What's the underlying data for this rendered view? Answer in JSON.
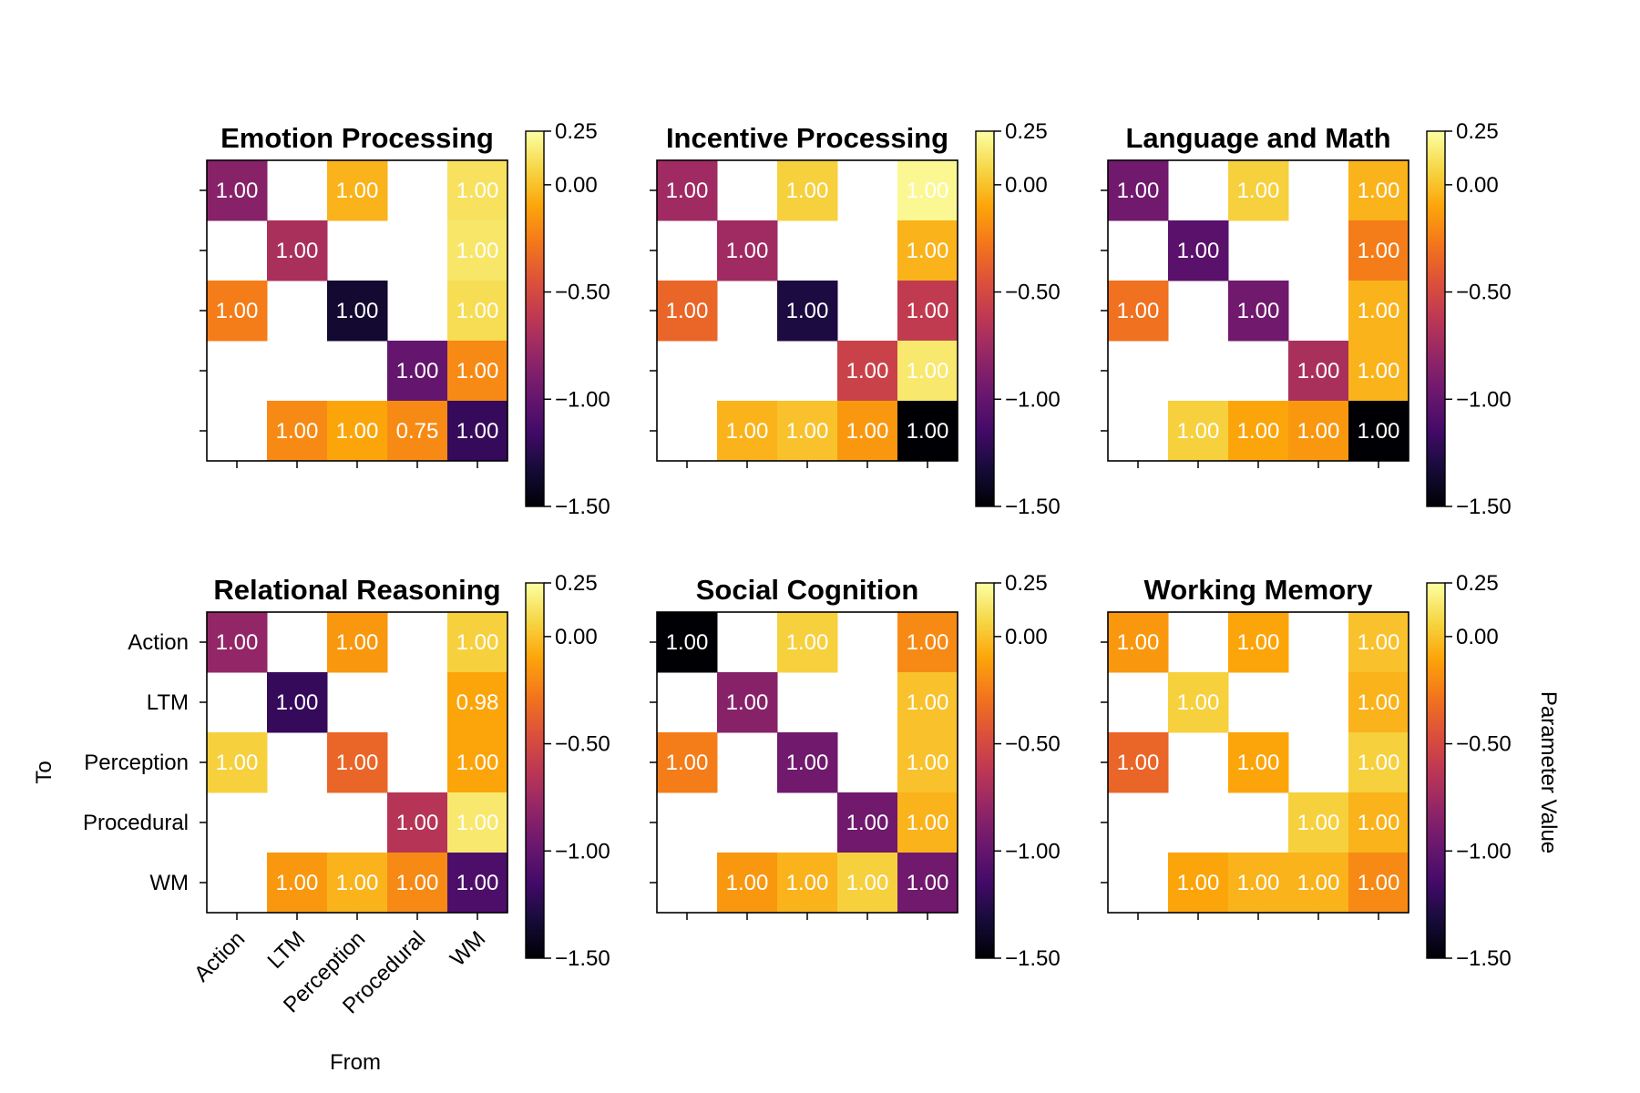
{
  "chart_data": {
    "type": "heatmap",
    "categories": [
      "Action",
      "LTM",
      "Perception",
      "Procedural",
      "WM"
    ],
    "xlabel": "From",
    "ylabel": "To",
    "colorbar_label": "Parameter Value",
    "colormap": "inferno",
    "color_range": [
      -1.5,
      0.25
    ],
    "colorbar_ticks": [
      0.25,
      0.0,
      -0.5,
      -1.0,
      -1.5
    ],
    "colorbar_tick_labels": [
      "0.25",
      "0.00",
      "−0.50",
      "−1.00",
      "−1.50"
    ],
    "panels": [
      {
        "title": "Emotion Processing",
        "values": [
          [
            -0.85,
            null,
            -0.05,
            null,
            0.12
          ],
          [
            null,
            -0.7,
            null,
            null,
            0.14
          ],
          [
            -0.25,
            null,
            -1.35,
            null,
            0.1
          ],
          [
            null,
            null,
            null,
            -1.0,
            -0.2
          ],
          [
            null,
            -0.2,
            -0.1,
            -0.2,
            -1.2
          ]
        ],
        "labels": [
          [
            "1.00",
            null,
            "1.00",
            null,
            "1.00"
          ],
          [
            null,
            "1.00",
            null,
            null,
            "1.00"
          ],
          [
            "1.00",
            null,
            "1.00",
            null,
            "1.00"
          ],
          [
            null,
            null,
            null,
            "1.00",
            "1.00"
          ],
          [
            null,
            "1.00",
            "1.00",
            "0.75",
            "1.00"
          ]
        ]
      },
      {
        "title": "Incentive Processing",
        "values": [
          [
            -0.75,
            null,
            0.05,
            null,
            0.22
          ],
          [
            null,
            -0.75,
            null,
            null,
            -0.05
          ],
          [
            -0.35,
            null,
            -1.3,
            null,
            -0.6
          ],
          [
            null,
            null,
            null,
            -0.55,
            0.15
          ],
          [
            null,
            -0.05,
            0.0,
            -0.15,
            -1.5
          ]
        ],
        "labels": [
          [
            "1.00",
            null,
            "1.00",
            null,
            "1.00"
          ],
          [
            null,
            "1.00",
            null,
            null,
            "1.00"
          ],
          [
            "1.00",
            null,
            "1.00",
            null,
            "1.00"
          ],
          [
            null,
            null,
            null,
            "1.00",
            "1.00"
          ],
          [
            null,
            "1.00",
            "1.00",
            "1.00",
            "1.00"
          ]
        ]
      },
      {
        "title": "Language and Math",
        "values": [
          [
            -0.95,
            null,
            0.05,
            null,
            -0.05
          ],
          [
            null,
            -1.05,
            null,
            null,
            -0.25
          ],
          [
            -0.3,
            null,
            -0.95,
            null,
            -0.05
          ],
          [
            null,
            null,
            null,
            -0.7,
            -0.05
          ],
          [
            null,
            0.05,
            -0.1,
            -0.15,
            -1.5
          ]
        ],
        "labels": [
          [
            "1.00",
            null,
            "1.00",
            null,
            "1.00"
          ],
          [
            null,
            "1.00",
            null,
            null,
            "1.00"
          ],
          [
            "1.00",
            null,
            "1.00",
            null,
            "1.00"
          ],
          [
            null,
            null,
            null,
            "1.00",
            "1.00"
          ],
          [
            null,
            "1.00",
            "1.00",
            "1.00",
            "1.00"
          ]
        ]
      },
      {
        "title": "Relational Reasoning",
        "values": [
          [
            -0.8,
            null,
            -0.15,
            null,
            0.05
          ],
          [
            null,
            -1.2,
            null,
            null,
            -0.1
          ],
          [
            0.05,
            null,
            -0.35,
            null,
            -0.1
          ],
          [
            null,
            null,
            null,
            -0.65,
            0.15
          ],
          [
            null,
            -0.15,
            -0.05,
            -0.2,
            -1.1
          ]
        ],
        "labels": [
          [
            "1.00",
            null,
            "1.00",
            null,
            "1.00"
          ],
          [
            null,
            "1.00",
            null,
            null,
            "0.98"
          ],
          [
            "1.00",
            null,
            "1.00",
            null,
            "1.00"
          ],
          [
            null,
            null,
            null,
            "1.00",
            "1.00"
          ],
          [
            null,
            "1.00",
            "1.00",
            "1.00",
            "1.00"
          ]
        ]
      },
      {
        "title": "Social Cognition",
        "values": [
          [
            -1.5,
            null,
            0.05,
            null,
            -0.2
          ],
          [
            null,
            -0.85,
            null,
            null,
            0.0
          ],
          [
            -0.25,
            null,
            -0.95,
            null,
            0.0
          ],
          [
            null,
            null,
            null,
            -0.95,
            -0.05
          ],
          [
            null,
            -0.15,
            -0.05,
            0.05,
            -0.95
          ]
        ],
        "labels": [
          [
            "1.00",
            null,
            "1.00",
            null,
            "1.00"
          ],
          [
            null,
            "1.00",
            null,
            null,
            "1.00"
          ],
          [
            "1.00",
            null,
            "1.00",
            null,
            "1.00"
          ],
          [
            null,
            null,
            null,
            "1.00",
            "1.00"
          ],
          [
            null,
            "1.00",
            "1.00",
            "1.00",
            "1.00"
          ]
        ]
      },
      {
        "title": "Working Memory",
        "values": [
          [
            -0.15,
            null,
            -0.1,
            null,
            0.0
          ],
          [
            null,
            0.05,
            null,
            null,
            -0.05
          ],
          [
            -0.35,
            null,
            -0.1,
            null,
            0.05
          ],
          [
            null,
            null,
            null,
            0.05,
            -0.05
          ],
          [
            null,
            -0.1,
            -0.05,
            -0.05,
            -0.2
          ]
        ],
        "labels": [
          [
            "1.00",
            null,
            "1.00",
            null,
            "1.00"
          ],
          [
            null,
            "1.00",
            null,
            null,
            "1.00"
          ],
          [
            "1.00",
            null,
            "1.00",
            null,
            "1.00"
          ],
          [
            null,
            null,
            null,
            "1.00",
            "1.00"
          ],
          [
            null,
            "1.00",
            "1.00",
            "1.00",
            "1.00"
          ]
        ]
      }
    ]
  }
}
